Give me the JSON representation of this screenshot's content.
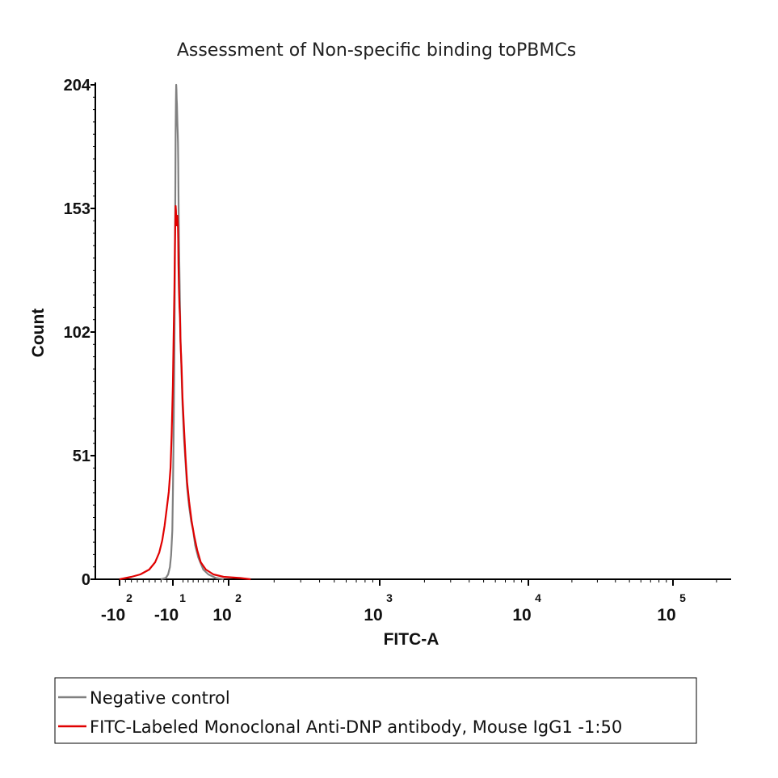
{
  "chart_data": {
    "type": "line",
    "title": "Assessment of Non-specific binding toPBMCs",
    "xlabel": "FITC-A",
    "ylabel": "Count",
    "x_scale": "biexponential",
    "ylim": [
      0,
      204
    ],
    "y_ticks": [
      "0",
      "51",
      "102",
      "153",
      "204"
    ],
    "x_ticks": [
      {
        "base": "-10",
        "exp": "2",
        "value": -100
      },
      {
        "base": "-10",
        "exp": "1",
        "value": -10
      },
      {
        "base": "10",
        "exp": "2",
        "value": 100
      },
      {
        "base": "10",
        "exp": "3",
        "value": 1000
      },
      {
        "base": "10",
        "exp": "4",
        "value": 10000
      },
      {
        "base": "10",
        "exp": "5",
        "value": 100000
      }
    ],
    "legend_position": "bottom",
    "series": [
      {
        "name": "Negative control",
        "color": "#808080",
        "points": [
          [
            -30,
            0
          ],
          [
            -22,
            0.5
          ],
          [
            -18,
            2
          ],
          [
            -15,
            5
          ],
          [
            -13,
            10
          ],
          [
            -11,
            20
          ],
          [
            -10,
            35
          ],
          [
            -8.5,
            60
          ],
          [
            -7,
            95
          ],
          [
            -6,
            130
          ],
          [
            -5,
            165
          ],
          [
            -4.5,
            185
          ],
          [
            -4,
            198
          ],
          [
            -3.5,
            204
          ],
          [
            -3,
            202
          ],
          [
            -2.5,
            198
          ],
          [
            -2,
            196
          ],
          [
            -1.5,
            192
          ],
          [
            -1,
            188
          ],
          [
            -0.5,
            184
          ],
          [
            0,
            180
          ],
          [
            0.5,
            172
          ],
          [
            1,
            160
          ],
          [
            2,
            140
          ],
          [
            3,
            125
          ],
          [
            4,
            112
          ],
          [
            5,
            100
          ],
          [
            7,
            85
          ],
          [
            9,
            72
          ],
          [
            12,
            58
          ],
          [
            15,
            48
          ],
          [
            18,
            38
          ],
          [
            22,
            30
          ],
          [
            26,
            24
          ],
          [
            30,
            20
          ],
          [
            34,
            14
          ],
          [
            40,
            9
          ],
          [
            50,
            4
          ],
          [
            60,
            2
          ],
          [
            75,
            0.5
          ],
          [
            90,
            0
          ]
        ]
      },
      {
        "name": "FITC-Labeled Monoclonal Anti-DNP antibody, Mouse IgG1 -1:50",
        "color": "#e00000",
        "points": [
          [
            -100,
            0
          ],
          [
            -80,
            1
          ],
          [
            -65,
            2
          ],
          [
            -50,
            4
          ],
          [
            -40,
            7
          ],
          [
            -33,
            11
          ],
          [
            -28,
            16
          ],
          [
            -24,
            22
          ],
          [
            -20,
            30
          ],
          [
            -17,
            36
          ],
          [
            -14,
            46
          ],
          [
            -12,
            60
          ],
          [
            -10,
            80
          ],
          [
            -8.5,
            100
          ],
          [
            -7,
            120
          ],
          [
            -6,
            138
          ],
          [
            -5,
            150
          ],
          [
            -4.5,
            154
          ],
          [
            -4,
            152
          ],
          [
            -3.5,
            148
          ],
          [
            -3,
            146
          ],
          [
            -2.5,
            150
          ],
          [
            -2,
            148
          ],
          [
            -1.5,
            146
          ],
          [
            -1,
            150
          ],
          [
            -0.5,
            147
          ],
          [
            0,
            145
          ],
          [
            0.5,
            140
          ],
          [
            1,
            130
          ],
          [
            2,
            120
          ],
          [
            3,
            112
          ],
          [
            4,
            108
          ],
          [
            5,
            98
          ],
          [
            7,
            88
          ],
          [
            9,
            75
          ],
          [
            12,
            62
          ],
          [
            15,
            50
          ],
          [
            18,
            40
          ],
          [
            22,
            32
          ],
          [
            27,
            24
          ],
          [
            32,
            18
          ],
          [
            38,
            12
          ],
          [
            45,
            7
          ],
          [
            55,
            4
          ],
          [
            70,
            2
          ],
          [
            90,
            1
          ],
          [
            120,
            0.5
          ],
          [
            140,
            0
          ]
        ]
      }
    ]
  }
}
